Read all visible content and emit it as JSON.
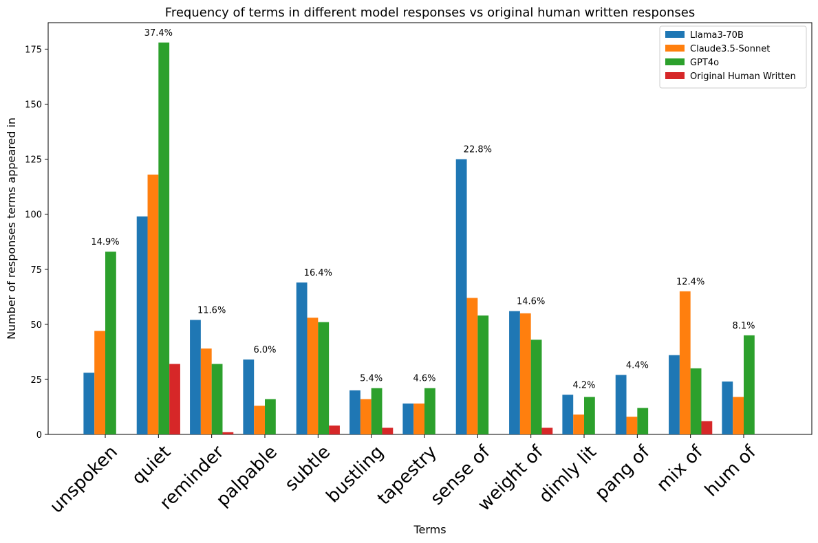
{
  "chart_data": {
    "type": "bar",
    "title": "Frequency of terms in different model responses vs original human written responses",
    "xlabel": "Terms",
    "ylabel": "Number of responses terms appeared in",
    "ylim": [
      0,
      187
    ],
    "yticks": [
      0,
      25,
      50,
      75,
      100,
      125,
      150,
      175
    ],
    "categories": [
      "unspoken",
      "quiet",
      "reminder",
      "palpable",
      "subtle",
      "bustling",
      "tapestry",
      "sense of",
      "weight of",
      "dimly lit",
      "pang of",
      "mix of",
      "hum of"
    ],
    "series": [
      {
        "name": "Llama3-70B",
        "color": "#1f77b4",
        "values": [
          28,
          99,
          52,
          34,
          69,
          20,
          14,
          125,
          56,
          18,
          27,
          36,
          24
        ]
      },
      {
        "name": "Claude3.5-Sonnet",
        "color": "#ff7f0e",
        "values": [
          47,
          118,
          39,
          13,
          53,
          16,
          14,
          62,
          55,
          9,
          8,
          65,
          17
        ]
      },
      {
        "name": "GPT4o",
        "color": "#2ca02c",
        "values": [
          83,
          178,
          32,
          16,
          51,
          21,
          21,
          54,
          43,
          17,
          12,
          30,
          45
        ]
      },
      {
        "name": "Original Human Written",
        "color": "#d62728",
        "values": [
          0,
          32,
          1,
          0,
          4,
          3,
          0,
          0,
          3,
          0,
          0,
          6,
          0
        ]
      }
    ],
    "percent_labels": [
      "14.9%",
      "37.4%",
      "11.6%",
      "6.0%",
      "16.4%",
      "5.4%",
      "4.6%",
      "22.8%",
      "14.6%",
      "4.2%",
      "4.4%",
      "12.4%",
      "8.1%"
    ],
    "legend_position": "top-right",
    "grid": false
  }
}
